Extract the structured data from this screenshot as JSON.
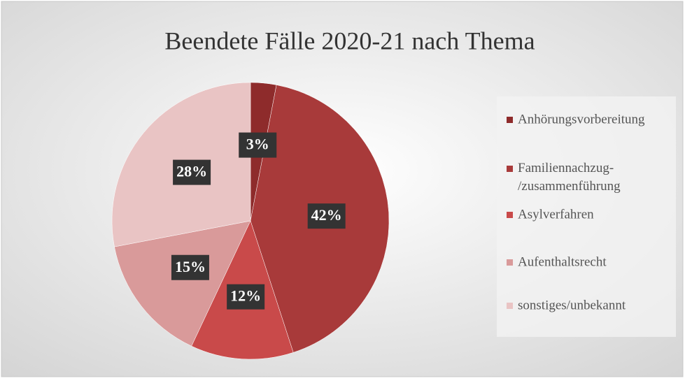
{
  "chart_data": {
    "type": "pie",
    "title": "Beendete Fälle 2020-21 nach Thema",
    "categories": [
      "Anhörungsvorbereitung",
      "Familiennachzug-/zusammenführung",
      "Asylverfahren",
      "Aufenthaltsrecht",
      "sonstiges/unbekannt"
    ],
    "values": [
      3,
      42,
      12,
      15,
      28
    ],
    "value_labels": [
      "3%",
      "42%",
      "12%",
      "15%",
      "28%"
    ],
    "colors": [
      "#8e2b2b",
      "#a83a3a",
      "#c94a4a",
      "#d99a9a",
      "#e9c4c4"
    ],
    "legend": "right"
  }
}
